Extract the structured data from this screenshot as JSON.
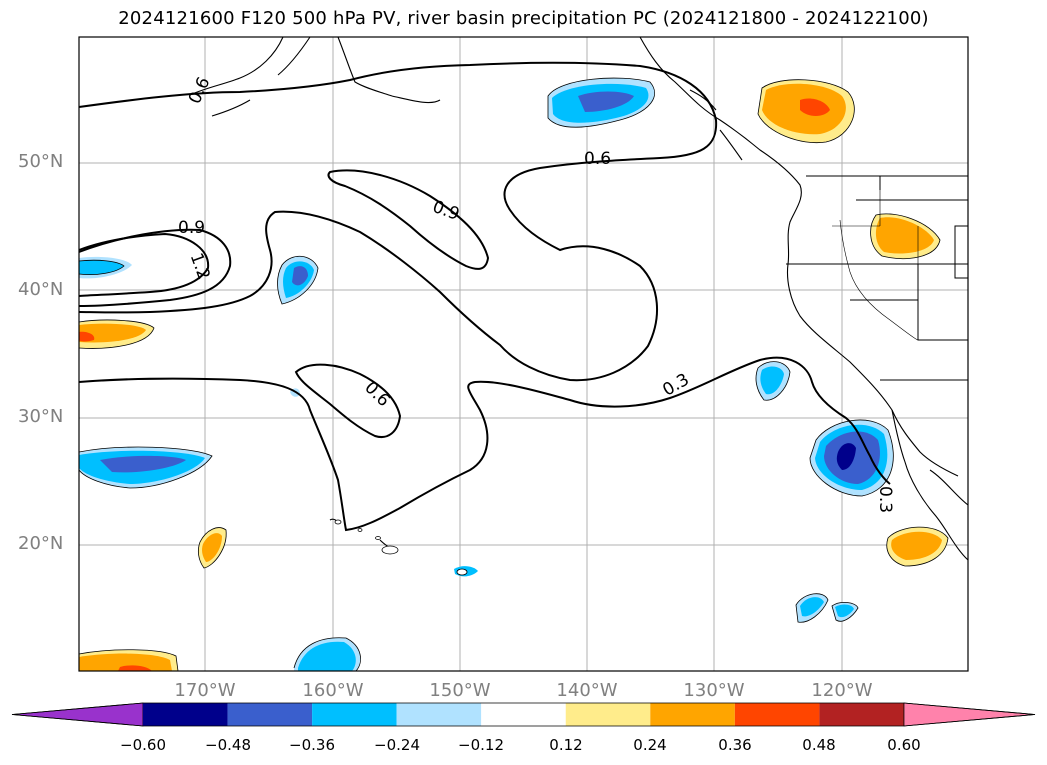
{
  "title": "2024121600 F120 500 hPa PV, river basin precipitation PC (2024121800 - 2024122100)",
  "map": {
    "lat_ticks": [
      "50°N",
      "40°N",
      "30°N",
      "20°N"
    ],
    "lon_ticks": [
      "170°W",
      "160°W",
      "150°W",
      "140°W",
      "130°W",
      "120°W"
    ],
    "contour_labels": [
      "0.6",
      "0.6",
      "0.9",
      "0.9",
      "1.2",
      "0.6",
      "0.3",
      "0.3"
    ]
  },
  "colorbar": {
    "tick_labels": [
      "−0.60",
      "−0.48",
      "−0.36",
      "−0.24",
      "−0.12",
      "0.12",
      "0.24",
      "0.36",
      "0.48",
      "0.60"
    ],
    "colors": [
      "#9932cc",
      "#00008b",
      "#3a5fcd",
      "#00bfff",
      "#b0e2ff",
      "#ffffff",
      "#ffec8b",
      "#ffa500",
      "#ff4500",
      "#b22222",
      "#ff82ab"
    ]
  }
}
